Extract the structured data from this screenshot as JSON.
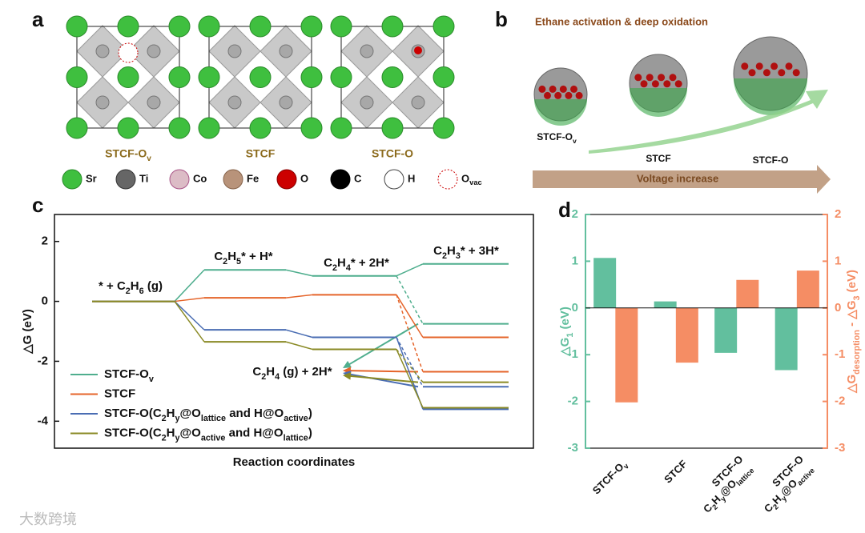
{
  "panel_a": {
    "label": "a",
    "structures": [
      "STCF-O_{v}",
      "STCF",
      "STCF-O"
    ],
    "legend": [
      "Sr",
      "Ti",
      "Co",
      "Fe",
      "O",
      "C",
      "H",
      "O_{vac}"
    ]
  },
  "panel_b": {
    "label": "b",
    "title": "Ethane activation & deep oxidation",
    "stages": [
      "STCF-O_{v}",
      "STCF",
      "STCF-O"
    ],
    "arrow_label": "Voltage increase"
  },
  "panel_labels": [
    "c",
    "d"
  ],
  "watermark": "大数跨境",
  "chart_data": [
    {
      "type": "energy_diagram",
      "x_label": "Reaction coordinates",
      "y_label": "△G (eV)",
      "categories": [
        "* + C_{2}H_{6} (g)",
        "C_{2}H_{5}* + H*",
        "C_{2}H_{4}* + 2H*",
        "C_{2}H_{3}* + 3H*"
      ],
      "desorption_label": "C_{2}H_{4} (g) + 2H*",
      "series": [
        {
          "name": "STCF-O_{v}",
          "color": "#4fae8e",
          "values": [
            0,
            1.05,
            0.85,
            1.25
          ],
          "desorption": -0.75
        },
        {
          "name": "STCF",
          "color": "#e5642a",
          "values": [
            0,
            0.12,
            0.22,
            -1.2
          ],
          "desorption": -2.35
        },
        {
          "name": "STCF-O(C_{2}H_{y}@O_{lattice} and H@O_{active})",
          "color": "#4a6db3",
          "values": [
            0,
            -0.95,
            -1.2,
            -3.6
          ],
          "desorption": -2.85
        },
        {
          "name": "STCF-O(C_{2}H_{y}@O_{active} and H@O_{lattice})",
          "color": "#8a8a25",
          "values": [
            0,
            -1.35,
            -1.6,
            -3.55
          ],
          "desorption": -2.7
        }
      ],
      "ylim": [
        -4.9,
        2.9
      ],
      "yticks": [
        -4,
        -2,
        0,
        2
      ],
      "legend": "lower left"
    },
    {
      "type": "bar",
      "y_label": "△G_{1} (eV)",
      "y2_label": "△G_{desorption} - △G_{3} (eV)",
      "categories": [
        "STCF-O_{v}",
        "STCF",
        "STCF-O\nC_{2}H_{y}@O_{lattice}",
        "STCF-O\nC_{2}H_{y}@O_{active}"
      ],
      "series": [
        {
          "name": "△G_{1}",
          "color": "#62bf9e",
          "values": [
            1.07,
            0.14,
            -0.96,
            -1.33
          ]
        },
        {
          "name": "△G_{desorption} - △G_{3}",
          "color": "#f58d64",
          "values": [
            -2.02,
            -1.17,
            0.6,
            0.8
          ],
          "axis": "y2"
        }
      ],
      "ylim": [
        -3,
        2
      ],
      "yticks": [
        -3,
        -2,
        -1,
        0,
        1,
        2
      ],
      "y2lim": [
        -3,
        2
      ],
      "y2ticks": [
        -3,
        -2,
        -1,
        0,
        1,
        2
      ]
    }
  ]
}
